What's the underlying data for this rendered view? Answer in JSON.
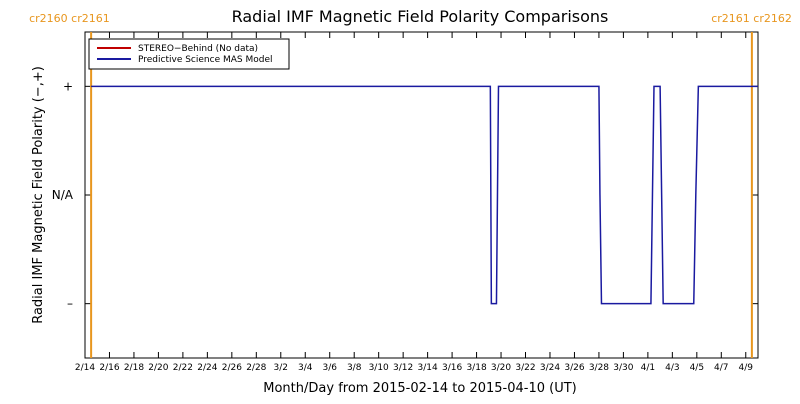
{
  "chart_data": {
    "type": "line",
    "title": "Radial IMF Magnetic Field Polarity Comparisons",
    "xlabel": "Month/Day from 2015-02-14 to 2015-04-10 (UT)",
    "ylabel": "Radial IMF Magnetic Field Polarity (−,+)",
    "xlim": [
      "2015-02-14",
      "2015-04-10"
    ],
    "ylim": [
      -1.5,
      1.5
    ],
    "y_ticks": [
      {
        "value": 1,
        "label": "+"
      },
      {
        "value": 0,
        "label": "N/A"
      },
      {
        "value": -1,
        "label": "–"
      }
    ],
    "x_ticks": [
      {
        "date": "2015-02-14",
        "label": "2/14"
      },
      {
        "date": "2015-02-16",
        "label": "2/16"
      },
      {
        "date": "2015-02-18",
        "label": "2/18"
      },
      {
        "date": "2015-02-20",
        "label": "2/20"
      },
      {
        "date": "2015-02-22",
        "label": "2/22"
      },
      {
        "date": "2015-02-24",
        "label": "2/24"
      },
      {
        "date": "2015-02-26",
        "label": "2/26"
      },
      {
        "date": "2015-02-28",
        "label": "2/28"
      },
      {
        "date": "2015-03-02",
        "label": "3/2"
      },
      {
        "date": "2015-03-04",
        "label": "3/4"
      },
      {
        "date": "2015-03-06",
        "label": "3/6"
      },
      {
        "date": "2015-03-08",
        "label": "3/8"
      },
      {
        "date": "2015-03-10",
        "label": "3/10"
      },
      {
        "date": "2015-03-12",
        "label": "3/12"
      },
      {
        "date": "2015-03-14",
        "label": "3/14"
      },
      {
        "date": "2015-03-16",
        "label": "3/16"
      },
      {
        "date": "2015-03-18",
        "label": "3/18"
      },
      {
        "date": "2015-03-20",
        "label": "3/20"
      },
      {
        "date": "2015-03-22",
        "label": "3/22"
      },
      {
        "date": "2015-03-24",
        "label": "3/24"
      },
      {
        "date": "2015-03-26",
        "label": "3/26"
      },
      {
        "date": "2015-03-28",
        "label": "3/28"
      },
      {
        "date": "2015-03-30",
        "label": "3/30"
      },
      {
        "date": "2015-04-01",
        "label": "4/1"
      },
      {
        "date": "2015-04-03",
        "label": "4/3"
      },
      {
        "date": "2015-04-05",
        "label": "4/5"
      },
      {
        "date": "2015-04-07",
        "label": "4/7"
      },
      {
        "date": "2015-04-09",
        "label": "4/9"
      }
    ],
    "carrington_markers": [
      {
        "date": "2015-02-14T12:00",
        "labels": [
          "cr2160",
          "cr2161"
        ],
        "color": "#e8961e"
      },
      {
        "date": "2015-04-09T12:00",
        "labels": [
          "cr2161",
          "cr2162"
        ],
        "color": "#e8961e"
      }
    ],
    "legend": {
      "placement": "top-left",
      "entries": [
        {
          "label": "STEREO−Behind (No data)",
          "color": "#c00000"
        },
        {
          "label": "Predictive Science MAS Model",
          "color": "#1a1aa0"
        }
      ]
    },
    "series": [
      {
        "name": "Predictive Science MAS Model",
        "color": "#1a1aa0",
        "points": [
          {
            "x": "2015-02-14T12:00",
            "y": 1
          },
          {
            "x": "2015-03-19T03:00",
            "y": 1
          },
          {
            "x": "2015-03-19T04:00",
            "y": 0
          },
          {
            "x": "2015-03-19T05:00",
            "y": -1
          },
          {
            "x": "2015-03-19T15:00",
            "y": -1
          },
          {
            "x": "2015-03-19T17:00",
            "y": 0
          },
          {
            "x": "2015-03-19T19:00",
            "y": 1
          },
          {
            "x": "2015-03-28T00:00",
            "y": 1
          },
          {
            "x": "2015-03-28T02:00",
            "y": 0
          },
          {
            "x": "2015-03-28T05:00",
            "y": -1
          },
          {
            "x": "2015-04-01T06:00",
            "y": -1
          },
          {
            "x": "2015-04-01T09:00",
            "y": 0
          },
          {
            "x": "2015-04-01T12:00",
            "y": 1
          },
          {
            "x": "2015-04-02T00:00",
            "y": 1
          },
          {
            "x": "2015-04-02T03:00",
            "y": 0
          },
          {
            "x": "2015-04-02T06:00",
            "y": -1
          },
          {
            "x": "2015-04-04T18:00",
            "y": -1
          },
          {
            "x": "2015-04-04T22:00",
            "y": 0
          },
          {
            "x": "2015-04-05T03:00",
            "y": 1
          },
          {
            "x": "2015-04-10T00:00",
            "y": 1
          }
        ]
      }
    ]
  }
}
